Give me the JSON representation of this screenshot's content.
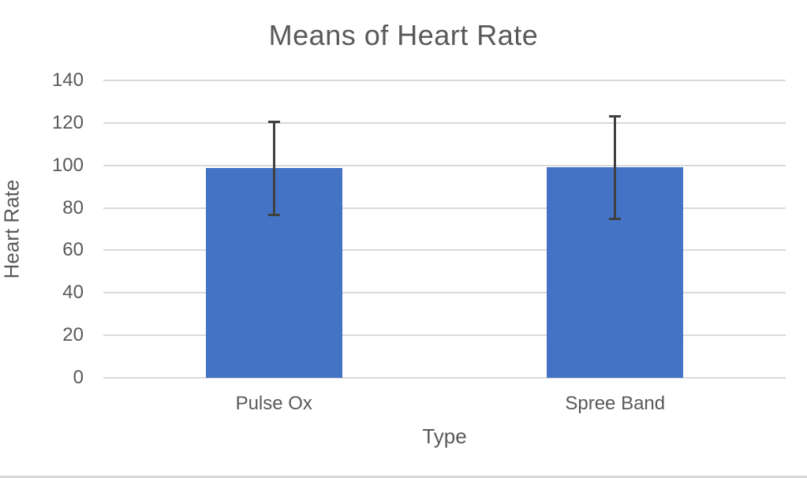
{
  "chart_data": {
    "type": "bar",
    "title": "Means of Heart Rate",
    "xlabel": "Type",
    "ylabel": "Heart Rate",
    "categories": [
      "Pulse Ox",
      "Spree Band"
    ],
    "values": [
      98.6,
      99.1
    ],
    "error_bars": [
      22.0,
      24.3
    ],
    "error_bar_ranges": [
      [
        76.6,
        120.6
      ],
      [
        74.8,
        123.4
      ]
    ],
    "ylim": [
      0,
      140
    ],
    "yticks": [
      0,
      20,
      40,
      60,
      80,
      100,
      120,
      140
    ],
    "grid": "horizontal",
    "legend": "none",
    "colors": {
      "bar": "#4472C4",
      "error_bar": "#404040",
      "gridline": "#D9D9D9",
      "text": "#595959",
      "chart_border": "#D8D8D8"
    }
  }
}
